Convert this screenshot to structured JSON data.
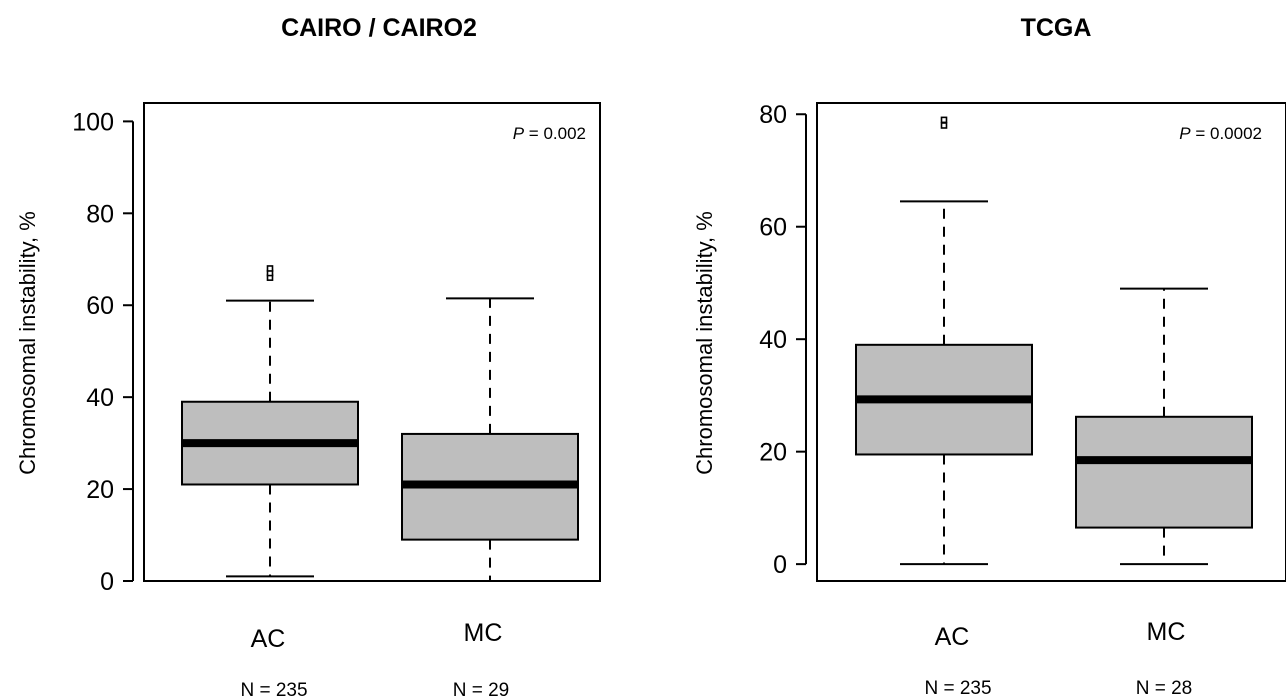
{
  "chart_data": [
    {
      "type": "box",
      "title": "CAIRO / CAIRO2",
      "ylabel": "Chromosomal instability, %",
      "ylim": [
        0,
        104
      ],
      "yticks": [
        0,
        20,
        40,
        60,
        80,
        100
      ],
      "ytick_labels": [
        "0",
        "20",
        "40",
        "60",
        "80",
        "100"
      ],
      "p_label": "P",
      "p_value_text": " = 0.002",
      "box_color": "#bebebe",
      "categories": [
        "AC",
        "MC"
      ],
      "n_labels": [
        "N = 235",
        "N = 29"
      ],
      "boxes": [
        {
          "whisker_low": 1,
          "q1": 21,
          "median": 30,
          "q3": 39,
          "whisker_high": 61,
          "outliers": [
            66,
            67,
            68
          ]
        },
        {
          "whisker_low": 0,
          "q1": 9,
          "median": 21,
          "q3": 32,
          "whisker_high": 61.5,
          "outliers": []
        }
      ]
    },
    {
      "type": "box",
      "title": "TCGA",
      "ylabel": "Chromosomal instability, %",
      "ylim": [
        -3,
        82
      ],
      "yticks": [
        0,
        20,
        40,
        60,
        80
      ],
      "ytick_labels": [
        "0",
        "20",
        "40",
        "60",
        "80"
      ],
      "p_label": "P",
      "p_value_text": " = 0.0002",
      "box_color": "#bebebe",
      "categories": [
        "AC",
        "MC"
      ],
      "n_labels": [
        "N = 235",
        "N = 28"
      ],
      "boxes": [
        {
          "whisker_low": 0,
          "q1": 19.5,
          "median": 29.3,
          "q3": 39,
          "whisker_high": 64.5,
          "outliers": [
            78,
            79
          ]
        },
        {
          "whisker_low": 0,
          "q1": 6.5,
          "median": 18.5,
          "q3": 26.2,
          "whisker_high": 49,
          "outliers": []
        }
      ]
    }
  ]
}
